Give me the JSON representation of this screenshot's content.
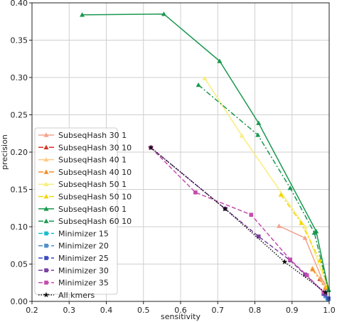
{
  "chart_data": {
    "type": "line",
    "xlabel": "sensitivity",
    "ylabel": "precision",
    "xlim": [
      0.2,
      1.0
    ],
    "ylim": [
      0.0,
      0.4
    ],
    "xticks": [
      "0.2",
      "0.3",
      "0.4",
      "0.5",
      "0.6",
      "0.7",
      "0.8",
      "0.9",
      "1.0"
    ],
    "yticks": [
      "0.00",
      "0.05",
      "0.10",
      "0.15",
      "0.20",
      "0.25",
      "0.30",
      "0.35",
      "0.40"
    ],
    "grid": true,
    "legend_position": "lower-left",
    "series": [
      {
        "name": "SubseqHash 30 1",
        "color": "#f4a28c",
        "marker": "triangle",
        "dash": "solid",
        "x": [
          0.865,
          0.935,
          0.985
        ],
        "y": [
          0.101,
          0.085,
          0.025
        ]
      },
      {
        "name": "SubseqHash 30 10",
        "color": "#d73027",
        "marker": "triangle",
        "dash": "dashdot",
        "x": [
          0.975,
          0.998
        ],
        "y": [
          0.03,
          0.015
        ]
      },
      {
        "name": "SubseqHash 40 1",
        "color": "#fdcc8a",
        "marker": "triangle",
        "dash": "solid",
        "x": [
          0.955,
          0.99
        ],
        "y": [
          0.045,
          0.02
        ]
      },
      {
        "name": "SubseqHash 40 10",
        "color": "#f28e2b",
        "marker": "triangle",
        "dash": "dashdot",
        "x": [
          0.955,
          0.99
        ],
        "y": [
          0.043,
          0.018
        ]
      },
      {
        "name": "SubseqHash 50 1",
        "color": "#f7ee7f",
        "marker": "triangle",
        "dash": "solid",
        "x": [
          0.665,
          0.765,
          0.935,
          0.995
        ],
        "y": [
          0.299,
          0.222,
          0.1,
          0.02
        ]
      },
      {
        "name": "SubseqHash 50 10",
        "color": "#f2d600",
        "marker": "triangle",
        "dash": "dashdot",
        "x": [
          0.87,
          0.925,
          0.975,
          0.995
        ],
        "y": [
          0.143,
          0.105,
          0.055,
          0.02
        ]
      },
      {
        "name": "SubseqHash 60 1",
        "color": "#1a9850",
        "marker": "triangle",
        "dash": "solid",
        "x": [
          0.335,
          0.555,
          0.705,
          0.81,
          0.965,
          0.998
        ],
        "y": [
          0.384,
          0.385,
          0.322,
          0.239,
          0.094,
          0.016
        ]
      },
      {
        "name": "SubseqHash 60 10",
        "color": "#1a9850",
        "marker": "triangle",
        "dash": "dashdot",
        "x": [
          0.648,
          0.808,
          0.895,
          0.96,
          0.998
        ],
        "y": [
          0.29,
          0.223,
          0.152,
          0.092,
          0.015
        ]
      },
      {
        "name": "Minimizer 15",
        "color": "#17becf",
        "marker": "square",
        "dash": "dashed",
        "x": [
          0.995
        ],
        "y": [
          0.004
        ]
      },
      {
        "name": "Minimizer 20",
        "color": "#4d8fc9",
        "marker": "square",
        "dash": "dashed",
        "x": [
          0.99,
          0.998
        ],
        "y": [
          0.007,
          0.003
        ]
      },
      {
        "name": "Minimizer 25",
        "color": "#3b4cc0",
        "marker": "square",
        "dash": "dashed",
        "x": [
          0.985,
          0.998
        ],
        "y": [
          0.01,
          0.004
        ]
      },
      {
        "name": "Minimizer 30",
        "color": "#7b3fa0",
        "marker": "square",
        "dash": "dashed",
        "x": [
          0.52,
          0.72,
          0.81,
          0.895,
          0.935,
          0.99
        ],
        "y": [
          0.206,
          0.124,
          0.087,
          0.055,
          0.036,
          0.01
        ]
      },
      {
        "name": "Minimizer 35",
        "color": "#c44bad",
        "marker": "square",
        "dash": "dashed",
        "x": [
          0.52,
          0.64,
          0.79,
          0.895,
          0.94,
          0.985
        ],
        "y": [
          0.206,
          0.146,
          0.116,
          0.056,
          0.035,
          0.012
        ]
      },
      {
        "name": "All kmers",
        "color": "#111111",
        "marker": "star",
        "dash": "dotted",
        "x": [
          0.52,
          0.72,
          0.88,
          0.99
        ],
        "y": [
          0.206,
          0.124,
          0.053,
          0.012
        ]
      }
    ]
  }
}
